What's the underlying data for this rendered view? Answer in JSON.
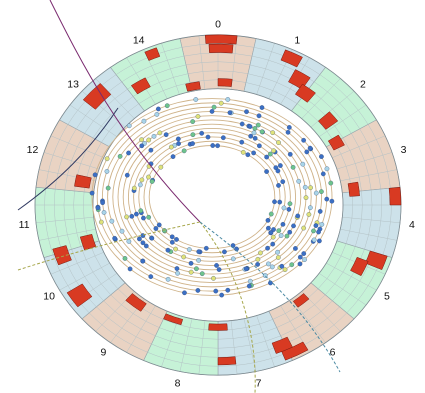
{
  "diagram": {
    "sector_labels": [
      "0",
      "1",
      "2",
      "3",
      "4",
      "5",
      "6",
      "7",
      "8",
      "9",
      "10",
      "11",
      "12",
      "13",
      "14"
    ],
    "sector_colors": [
      "#e9d3c3",
      "#cde2ea",
      "#c6f2d7",
      "#e9d3c3",
      "#cde2ea",
      "#c6f2d7",
      "#e9d3c3",
      "#cde2ea",
      "#c6f2d7",
      "#e9d3c3",
      "#cde2ea",
      "#c6f2d7",
      "#e9d3c3",
      "#cde2ea",
      "#c6f2d7"
    ],
    "hit_block_color": "#d83a22",
    "tracker_ring_color": "#cfb38a",
    "hit_dot_colors": {
      "primary": "#3b6fc4",
      "secondary": "#a9d4e8",
      "tertiary": "#dfe27a",
      "accent": "#6ec48d"
    },
    "track_colors": {
      "dark_blue": "#303a62",
      "purple": "#7a2a6f",
      "olive_dashed": "#a6a64a",
      "teal_dashed": "#4c8aa3"
    }
  }
}
